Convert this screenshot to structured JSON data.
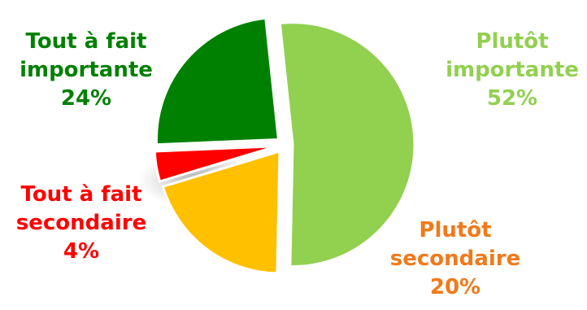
{
  "chart_data": {
    "type": "pie",
    "title": "",
    "slices": [
      {
        "category": "Plutôt importante",
        "label_lines": [
          "Plutôt",
          "importante"
        ],
        "value_label": "52%",
        "value": 52,
        "color": "#92d050"
      },
      {
        "category": "Plutôt secondaire",
        "label_lines": [
          "Plutôt",
          "secondaire"
        ],
        "value_label": "20%",
        "value": 20,
        "color": "#ffc000",
        "label_color": "#f07a1a"
      },
      {
        "category": "Tout à fait secondaire",
        "label_lines": [
          "Tout à fait",
          "secondaire"
        ],
        "value_label": "4%",
        "value": 4,
        "color": "#ff0000"
      },
      {
        "category": "Tout à fait importante",
        "label_lines": [
          "Tout à fait",
          "importante"
        ],
        "value_label": "24%",
        "value": 24,
        "color": "#008000"
      }
    ],
    "exploded": true,
    "style": "3d-shadow"
  }
}
